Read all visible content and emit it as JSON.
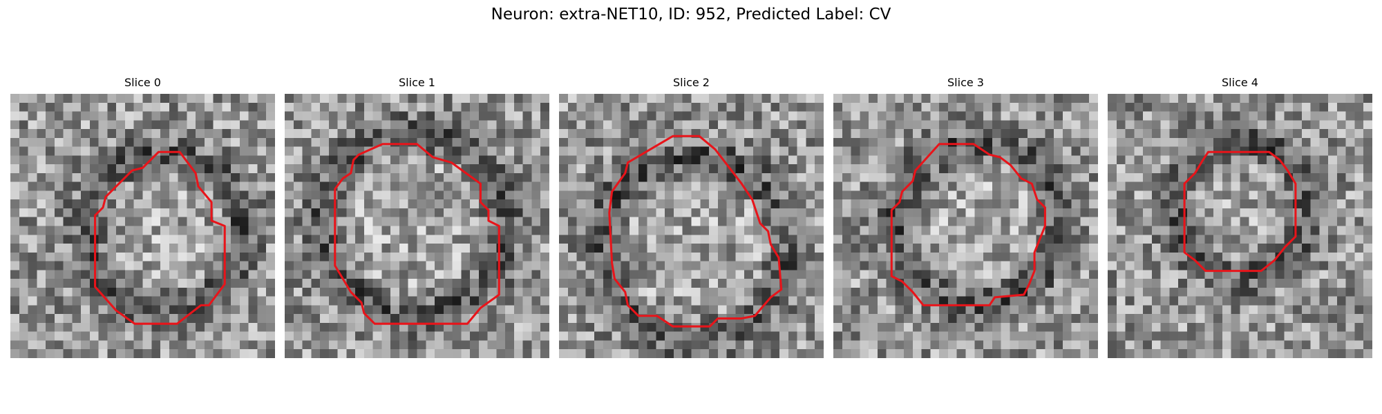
{
  "figure": {
    "title": "Neuron: extra-NET10, ID: 952, Predicted Label: CV"
  },
  "contour_color": "#e8141a",
  "slices": [
    {
      "title": "Slice 0",
      "contour": [
        [
          0.56,
          0.22
        ],
        [
          0.64,
          0.22
        ],
        [
          0.7,
          0.3
        ],
        [
          0.71,
          0.35
        ],
        [
          0.76,
          0.41
        ],
        [
          0.76,
          0.48
        ],
        [
          0.81,
          0.5
        ],
        [
          0.81,
          0.72
        ],
        [
          0.75,
          0.8
        ],
        [
          0.72,
          0.8
        ],
        [
          0.63,
          0.87
        ],
        [
          0.47,
          0.87
        ],
        [
          0.4,
          0.82
        ],
        [
          0.32,
          0.73
        ],
        [
          0.32,
          0.46
        ],
        [
          0.35,
          0.43
        ],
        [
          0.36,
          0.39
        ],
        [
          0.46,
          0.29
        ],
        [
          0.5,
          0.28
        ]
      ]
    },
    {
      "title": "Slice 1",
      "contour": [
        [
          0.37,
          0.19
        ],
        [
          0.5,
          0.19
        ],
        [
          0.56,
          0.24
        ],
        [
          0.63,
          0.26
        ],
        [
          0.74,
          0.34
        ],
        [
          0.74,
          0.41
        ],
        [
          0.77,
          0.44
        ],
        [
          0.77,
          0.48
        ],
        [
          0.81,
          0.5
        ],
        [
          0.81,
          0.76
        ],
        [
          0.74,
          0.81
        ],
        [
          0.69,
          0.87
        ],
        [
          0.34,
          0.87
        ],
        [
          0.3,
          0.83
        ],
        [
          0.29,
          0.79
        ],
        [
          0.25,
          0.75
        ],
        [
          0.19,
          0.65
        ],
        [
          0.19,
          0.36
        ],
        [
          0.22,
          0.32
        ],
        [
          0.25,
          0.3
        ],
        [
          0.26,
          0.25
        ],
        [
          0.28,
          0.23
        ]
      ]
    },
    {
      "title": "Slice 2",
      "contour": [
        [
          0.43,
          0.16
        ],
        [
          0.53,
          0.16
        ],
        [
          0.59,
          0.21
        ],
        [
          0.69,
          0.34
        ],
        [
          0.73,
          0.4
        ],
        [
          0.76,
          0.49
        ],
        [
          0.79,
          0.52
        ],
        [
          0.8,
          0.57
        ],
        [
          0.83,
          0.62
        ],
        [
          0.84,
          0.74
        ],
        [
          0.8,
          0.77
        ],
        [
          0.74,
          0.84
        ],
        [
          0.69,
          0.85
        ],
        [
          0.6,
          0.85
        ],
        [
          0.57,
          0.88
        ],
        [
          0.43,
          0.88
        ],
        [
          0.37,
          0.84
        ],
        [
          0.3,
          0.84
        ],
        [
          0.26,
          0.8
        ],
        [
          0.25,
          0.75
        ],
        [
          0.21,
          0.7
        ],
        [
          0.2,
          0.64
        ],
        [
          0.19,
          0.45
        ],
        [
          0.2,
          0.37
        ],
        [
          0.25,
          0.3
        ],
        [
          0.26,
          0.26
        ]
      ]
    },
    {
      "title": "Slice 3",
      "contour": [
        [
          0.4,
          0.19
        ],
        [
          0.53,
          0.19
        ],
        [
          0.59,
          0.23
        ],
        [
          0.63,
          0.24
        ],
        [
          0.67,
          0.27
        ],
        [
          0.71,
          0.32
        ],
        [
          0.75,
          0.34
        ],
        [
          0.77,
          0.4
        ],
        [
          0.8,
          0.43
        ],
        [
          0.8,
          0.5
        ],
        [
          0.78,
          0.55
        ],
        [
          0.76,
          0.6
        ],
        [
          0.76,
          0.67
        ],
        [
          0.74,
          0.72
        ],
        [
          0.72,
          0.76
        ],
        [
          0.61,
          0.77
        ],
        [
          0.59,
          0.8
        ],
        [
          0.34,
          0.8
        ],
        [
          0.3,
          0.75
        ],
        [
          0.26,
          0.71
        ],
        [
          0.22,
          0.69
        ],
        [
          0.22,
          0.44
        ],
        [
          0.25,
          0.41
        ],
        [
          0.26,
          0.37
        ],
        [
          0.3,
          0.33
        ],
        [
          0.31,
          0.29
        ]
      ]
    },
    {
      "title": "Slice 4",
      "contour": [
        [
          0.38,
          0.22
        ],
        [
          0.61,
          0.22
        ],
        [
          0.65,
          0.25
        ],
        [
          0.68,
          0.29
        ],
        [
          0.71,
          0.34
        ],
        [
          0.71,
          0.54
        ],
        [
          0.67,
          0.58
        ],
        [
          0.63,
          0.63
        ],
        [
          0.58,
          0.67
        ],
        [
          0.37,
          0.67
        ],
        [
          0.33,
          0.63
        ],
        [
          0.29,
          0.6
        ],
        [
          0.29,
          0.34
        ],
        [
          0.33,
          0.3
        ],
        [
          0.36,
          0.25
        ]
      ]
    }
  ]
}
